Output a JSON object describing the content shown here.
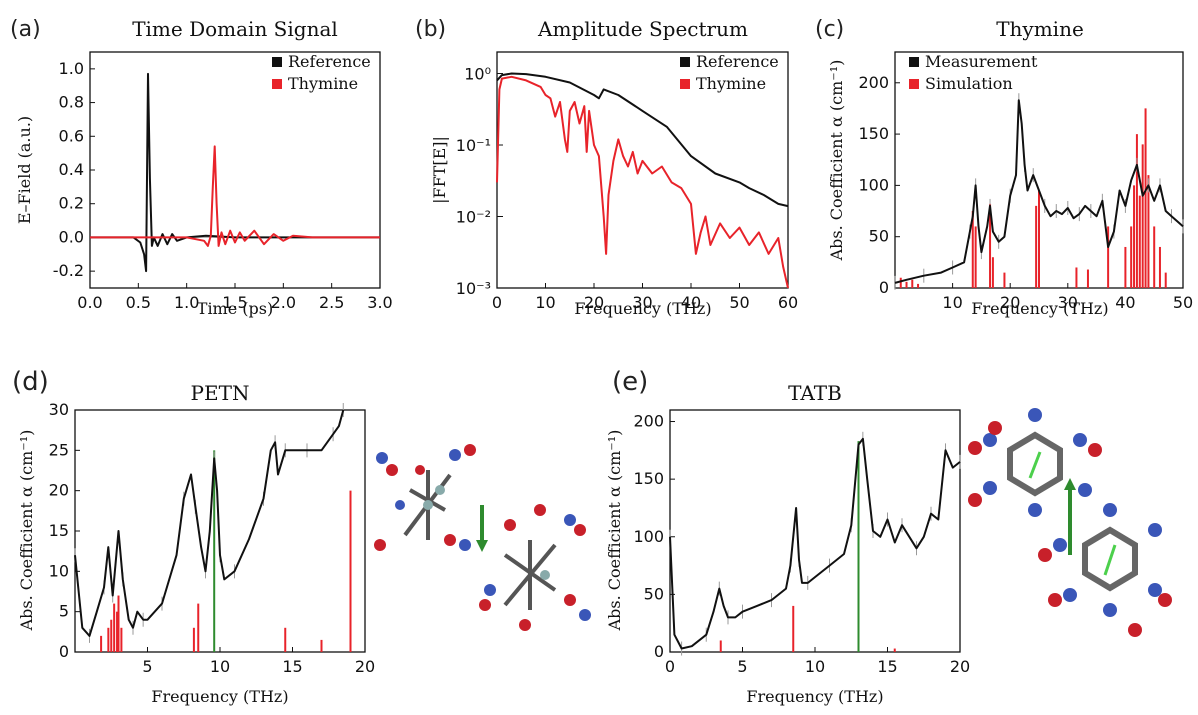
{
  "panels": {
    "a": {
      "letter": "(a)",
      "title": "Time Domain Signal",
      "xlabel": "Time (ps)",
      "ylabel": "E–Field  (a.u.)"
    },
    "b": {
      "letter": "(b)",
      "title": "Amplitude Spectrum",
      "xlabel": "Frequency (THz)",
      "ylabel": "|FFT[E]|"
    },
    "c": {
      "letter": "(c)",
      "title": "Thymine",
      "xlabel": "Frequency (THz)",
      "ylabel": "Abs. Coefficient α (cm⁻¹)"
    },
    "d": {
      "letter": "(d)",
      "title": "PETN",
      "xlabel": "Frequency (THz)",
      "ylabel": "Abs. Coefficient α (cm⁻¹)"
    },
    "e": {
      "letter": "(e)",
      "title": "TATB",
      "xlabel": "Frequency (THz)",
      "ylabel": "Abs. Coefficient α (cm⁻¹)"
    }
  },
  "colors": {
    "black": "#111111",
    "red": "#e8232a",
    "green": "#2e8b2e",
    "gray": "#9a9a9a"
  },
  "chart_data": [
    {
      "id": "a",
      "type": "line",
      "title": "Time Domain Signal",
      "xlabel": "Time (ps)",
      "ylabel": "E–Field  (a.u.)",
      "xlim": [
        0,
        3.0
      ],
      "ylim": [
        -0.3,
        1.1
      ],
      "xticks": [
        "0.0",
        "0.5",
        "1.0",
        "1.5",
        "2.0",
        "2.5",
        "3.0"
      ],
      "yticks": [
        "-0.2",
        "0.0",
        "0.2",
        "0.4",
        "0.6",
        "0.8",
        "1.0"
      ],
      "legend": "top-right",
      "series": [
        {
          "name": "Reference",
          "color": "black",
          "x": [
            0,
            0.45,
            0.52,
            0.56,
            0.58,
            0.6,
            0.62,
            0.64,
            0.66,
            0.7,
            0.75,
            0.8,
            0.85,
            0.9,
            1.0,
            1.2,
            1.5,
            2.0,
            2.5,
            3.0
          ],
          "y": [
            0,
            0,
            -0.03,
            -0.1,
            -0.2,
            0.97,
            0.35,
            -0.05,
            0.0,
            -0.05,
            0.02,
            -0.04,
            0.02,
            -0.02,
            0.0,
            0.01,
            0.0,
            0.0,
            0.0,
            0.0
          ]
        },
        {
          "name": "Thymine",
          "color": "red",
          "x": [
            0,
            1.0,
            1.18,
            1.22,
            1.25,
            1.27,
            1.29,
            1.31,
            1.33,
            1.36,
            1.4,
            1.45,
            1.5,
            1.55,
            1.6,
            1.7,
            1.8,
            1.9,
            2.0,
            2.1,
            2.3,
            2.5,
            3.0
          ],
          "y": [
            0,
            0,
            -0.02,
            -0.05,
            0.01,
            0.3,
            0.54,
            0.2,
            -0.05,
            0.03,
            -0.04,
            0.04,
            -0.03,
            0.03,
            -0.02,
            0.04,
            -0.04,
            0.02,
            -0.02,
            0.01,
            0.0,
            0.0,
            0.0
          ]
        }
      ]
    },
    {
      "id": "b",
      "type": "line",
      "title": "Amplitude Spectrum",
      "xlabel": "Frequency (THz)",
      "ylabel": "|FFT[E]|",
      "xlim": [
        0,
        60
      ],
      "ylim": [
        0.001,
        2
      ],
      "yscale": "log",
      "xticks": [
        "0",
        "10",
        "20",
        "30",
        "40",
        "50",
        "60"
      ],
      "legend": "top-right",
      "series": [
        {
          "name": "Reference",
          "color": "black",
          "x": [
            0,
            1,
            3,
            6,
            10,
            15,
            20,
            21,
            22,
            25,
            30,
            35,
            40,
            45,
            50,
            52,
            55,
            58,
            60
          ],
          "y": [
            0.8,
            0.95,
            1.0,
            0.98,
            0.9,
            0.75,
            0.5,
            0.45,
            0.6,
            0.5,
            0.3,
            0.18,
            0.07,
            0.04,
            0.03,
            0.025,
            0.02,
            0.015,
            0.014
          ]
        },
        {
          "name": "Thymine",
          "color": "red",
          "x": [
            0,
            0.5,
            1,
            3,
            6,
            9,
            10,
            11,
            12,
            13,
            14,
            14.5,
            15,
            16,
            17,
            18,
            18.5,
            19,
            20,
            21,
            22,
            22.5,
            23,
            24,
            25,
            26,
            27,
            28,
            29,
            30,
            32,
            34,
            36,
            38,
            40,
            41,
            42,
            43,
            44,
            46,
            48,
            50,
            52,
            54,
            56,
            58,
            59,
            60
          ],
          "y": [
            0.03,
            0.6,
            0.85,
            0.9,
            0.8,
            0.65,
            0.5,
            0.45,
            0.25,
            0.4,
            0.12,
            0.08,
            0.3,
            0.4,
            0.2,
            0.35,
            0.08,
            0.3,
            0.1,
            0.07,
            0.01,
            0.003,
            0.02,
            0.06,
            0.12,
            0.07,
            0.05,
            0.08,
            0.04,
            0.06,
            0.04,
            0.05,
            0.03,
            0.025,
            0.015,
            0.003,
            0.006,
            0.01,
            0.004,
            0.008,
            0.005,
            0.007,
            0.004,
            0.006,
            0.003,
            0.005,
            0.002,
            0.001
          ]
        }
      ]
    },
    {
      "id": "c",
      "type": "line",
      "title": "Thymine",
      "xlabel": "Frequency (THz)",
      "ylabel": "Abs. Coefficient α (cm⁻¹)",
      "xlim": [
        0,
        50
      ],
      "ylim": [
        0,
        230
      ],
      "xticks": [
        "10",
        "20",
        "30",
        "40",
        "50"
      ],
      "yticks": [
        "0",
        "50",
        "100",
        "150",
        "200"
      ],
      "legend": "top-left",
      "series": [
        {
          "name": "Measurement",
          "color": "black",
          "x": [
            0,
            2,
            5,
            8,
            10,
            12,
            13,
            13.5,
            14,
            14.5,
            15,
            16,
            16.5,
            17,
            18,
            19,
            20,
            21,
            21.5,
            22,
            22.5,
            23,
            24,
            25,
            26,
            27,
            28,
            29,
            30,
            31,
            32,
            33,
            34,
            35,
            36,
            37,
            38,
            39,
            40,
            41,
            42,
            43,
            44,
            45,
            46,
            47,
            48,
            49,
            50
          ],
          "y": [
            5,
            8,
            12,
            15,
            20,
            25,
            55,
            70,
            100,
            60,
            35,
            60,
            80,
            55,
            45,
            50,
            90,
            110,
            183,
            160,
            120,
            95,
            110,
            95,
            80,
            70,
            75,
            72,
            78,
            68,
            72,
            80,
            75,
            70,
            85,
            40,
            55,
            95,
            80,
            105,
            120,
            90,
            100,
            85,
            100,
            75,
            70,
            65,
            60
          ]
        }
      ],
      "sticks": {
        "name": "Simulation",
        "color": "red",
        "x": [
          1,
          2,
          3,
          4,
          13.5,
          14,
          16.5,
          17,
          19,
          24.5,
          25,
          31.5,
          33.5,
          37,
          40,
          41,
          41.5,
          42,
          42.5,
          43,
          43.5,
          44,
          45,
          46,
          47
        ],
        "y": [
          10,
          6,
          8,
          4,
          75,
          60,
          82,
          30,
          15,
          80,
          95,
          20,
          18,
          60,
          40,
          60,
          100,
          150,
          90,
          140,
          175,
          110,
          60,
          40,
          15
        ]
      }
    },
    {
      "id": "d",
      "type": "line",
      "title": "PETN",
      "xlabel": "Frequency (THz)",
      "ylabel": "Abs. Coefficient α (cm⁻¹)",
      "xlim": [
        0,
        20
      ],
      "ylim": [
        0,
        30
      ],
      "xticks": [
        "5",
        "10",
        "15",
        "20"
      ],
      "yticks": [
        "0",
        "5",
        "10",
        "15",
        "20",
        "25",
        "30"
      ],
      "series": [
        {
          "name": "",
          "color": "black",
          "x": [
            0,
            0.5,
            1,
            1.5,
            2,
            2.3,
            2.6,
            3,
            3.3,
            3.7,
            4,
            4.3,
            4.7,
            5,
            6,
            7,
            7.5,
            8,
            8.3,
            8.7,
            9,
            9.3,
            9.6,
            9.8,
            10,
            10.3,
            11,
            12,
            13,
            13.5,
            13.8,
            14,
            14.5,
            15,
            16,
            17,
            17.8,
            18.2,
            18.5
          ],
          "y": [
            12,
            3,
            2,
            5,
            8,
            13,
            7,
            15,
            9,
            4,
            3,
            5,
            4,
            4,
            6,
            12,
            19,
            22,
            18,
            13,
            10,
            15,
            24,
            20,
            12,
            9,
            10,
            14,
            19,
            25,
            26,
            22,
            25,
            25,
            25,
            25,
            27,
            28,
            30
          ]
        }
      ],
      "sticks": {
        "name": "",
        "color": "red",
        "x": [
          1.8,
          2.3,
          2.5,
          2.7,
          2.9,
          3,
          3.2,
          8.2,
          8.5,
          14.5,
          17,
          19
        ],
        "y": [
          2,
          3,
          4,
          6,
          5,
          7,
          3,
          3,
          6,
          3,
          1.5,
          20
        ]
      },
      "mode": {
        "color": "green",
        "x": 9.6,
        "y": 25
      }
    },
    {
      "id": "e",
      "type": "line",
      "title": "TATB",
      "xlabel": "Frequency (THz)",
      "ylabel": "Abs. Coefficient α (cm⁻¹)",
      "xlim": [
        0,
        20
      ],
      "ylim": [
        0,
        210
      ],
      "xticks": [
        "0",
        "5",
        "10",
        "15",
        "20"
      ],
      "yticks": [
        "0",
        "50",
        "100",
        "150",
        "200"
      ],
      "series": [
        {
          "name": "",
          "color": "black",
          "x": [
            0,
            0.3,
            0.8,
            1.5,
            2.5,
            3,
            3.4,
            3.7,
            4,
            4.5,
            5,
            6,
            7,
            8,
            8.3,
            8.7,
            8.9,
            9.1,
            9.5,
            10,
            11,
            12,
            12.5,
            13,
            13.3,
            13.6,
            14,
            14.5,
            15,
            15.5,
            16,
            16.5,
            17,
            17.5,
            18,
            18.5,
            19,
            19.5,
            20
          ],
          "y": [
            100,
            15,
            3,
            5,
            15,
            35,
            55,
            40,
            30,
            30,
            35,
            40,
            45,
            55,
            75,
            125,
            80,
            60,
            60,
            65,
            75,
            85,
            110,
            180,
            185,
            150,
            105,
            100,
            115,
            95,
            110,
            100,
            90,
            100,
            120,
            115,
            175,
            160,
            165
          ]
        }
      ],
      "sticks": {
        "name": "",
        "color": "red",
        "x": [
          3.5,
          8.5,
          15.5
        ],
        "y": [
          10,
          40,
          3
        ]
      },
      "mode": {
        "color": "green",
        "x": 13,
        "y": 183
      }
    }
  ]
}
